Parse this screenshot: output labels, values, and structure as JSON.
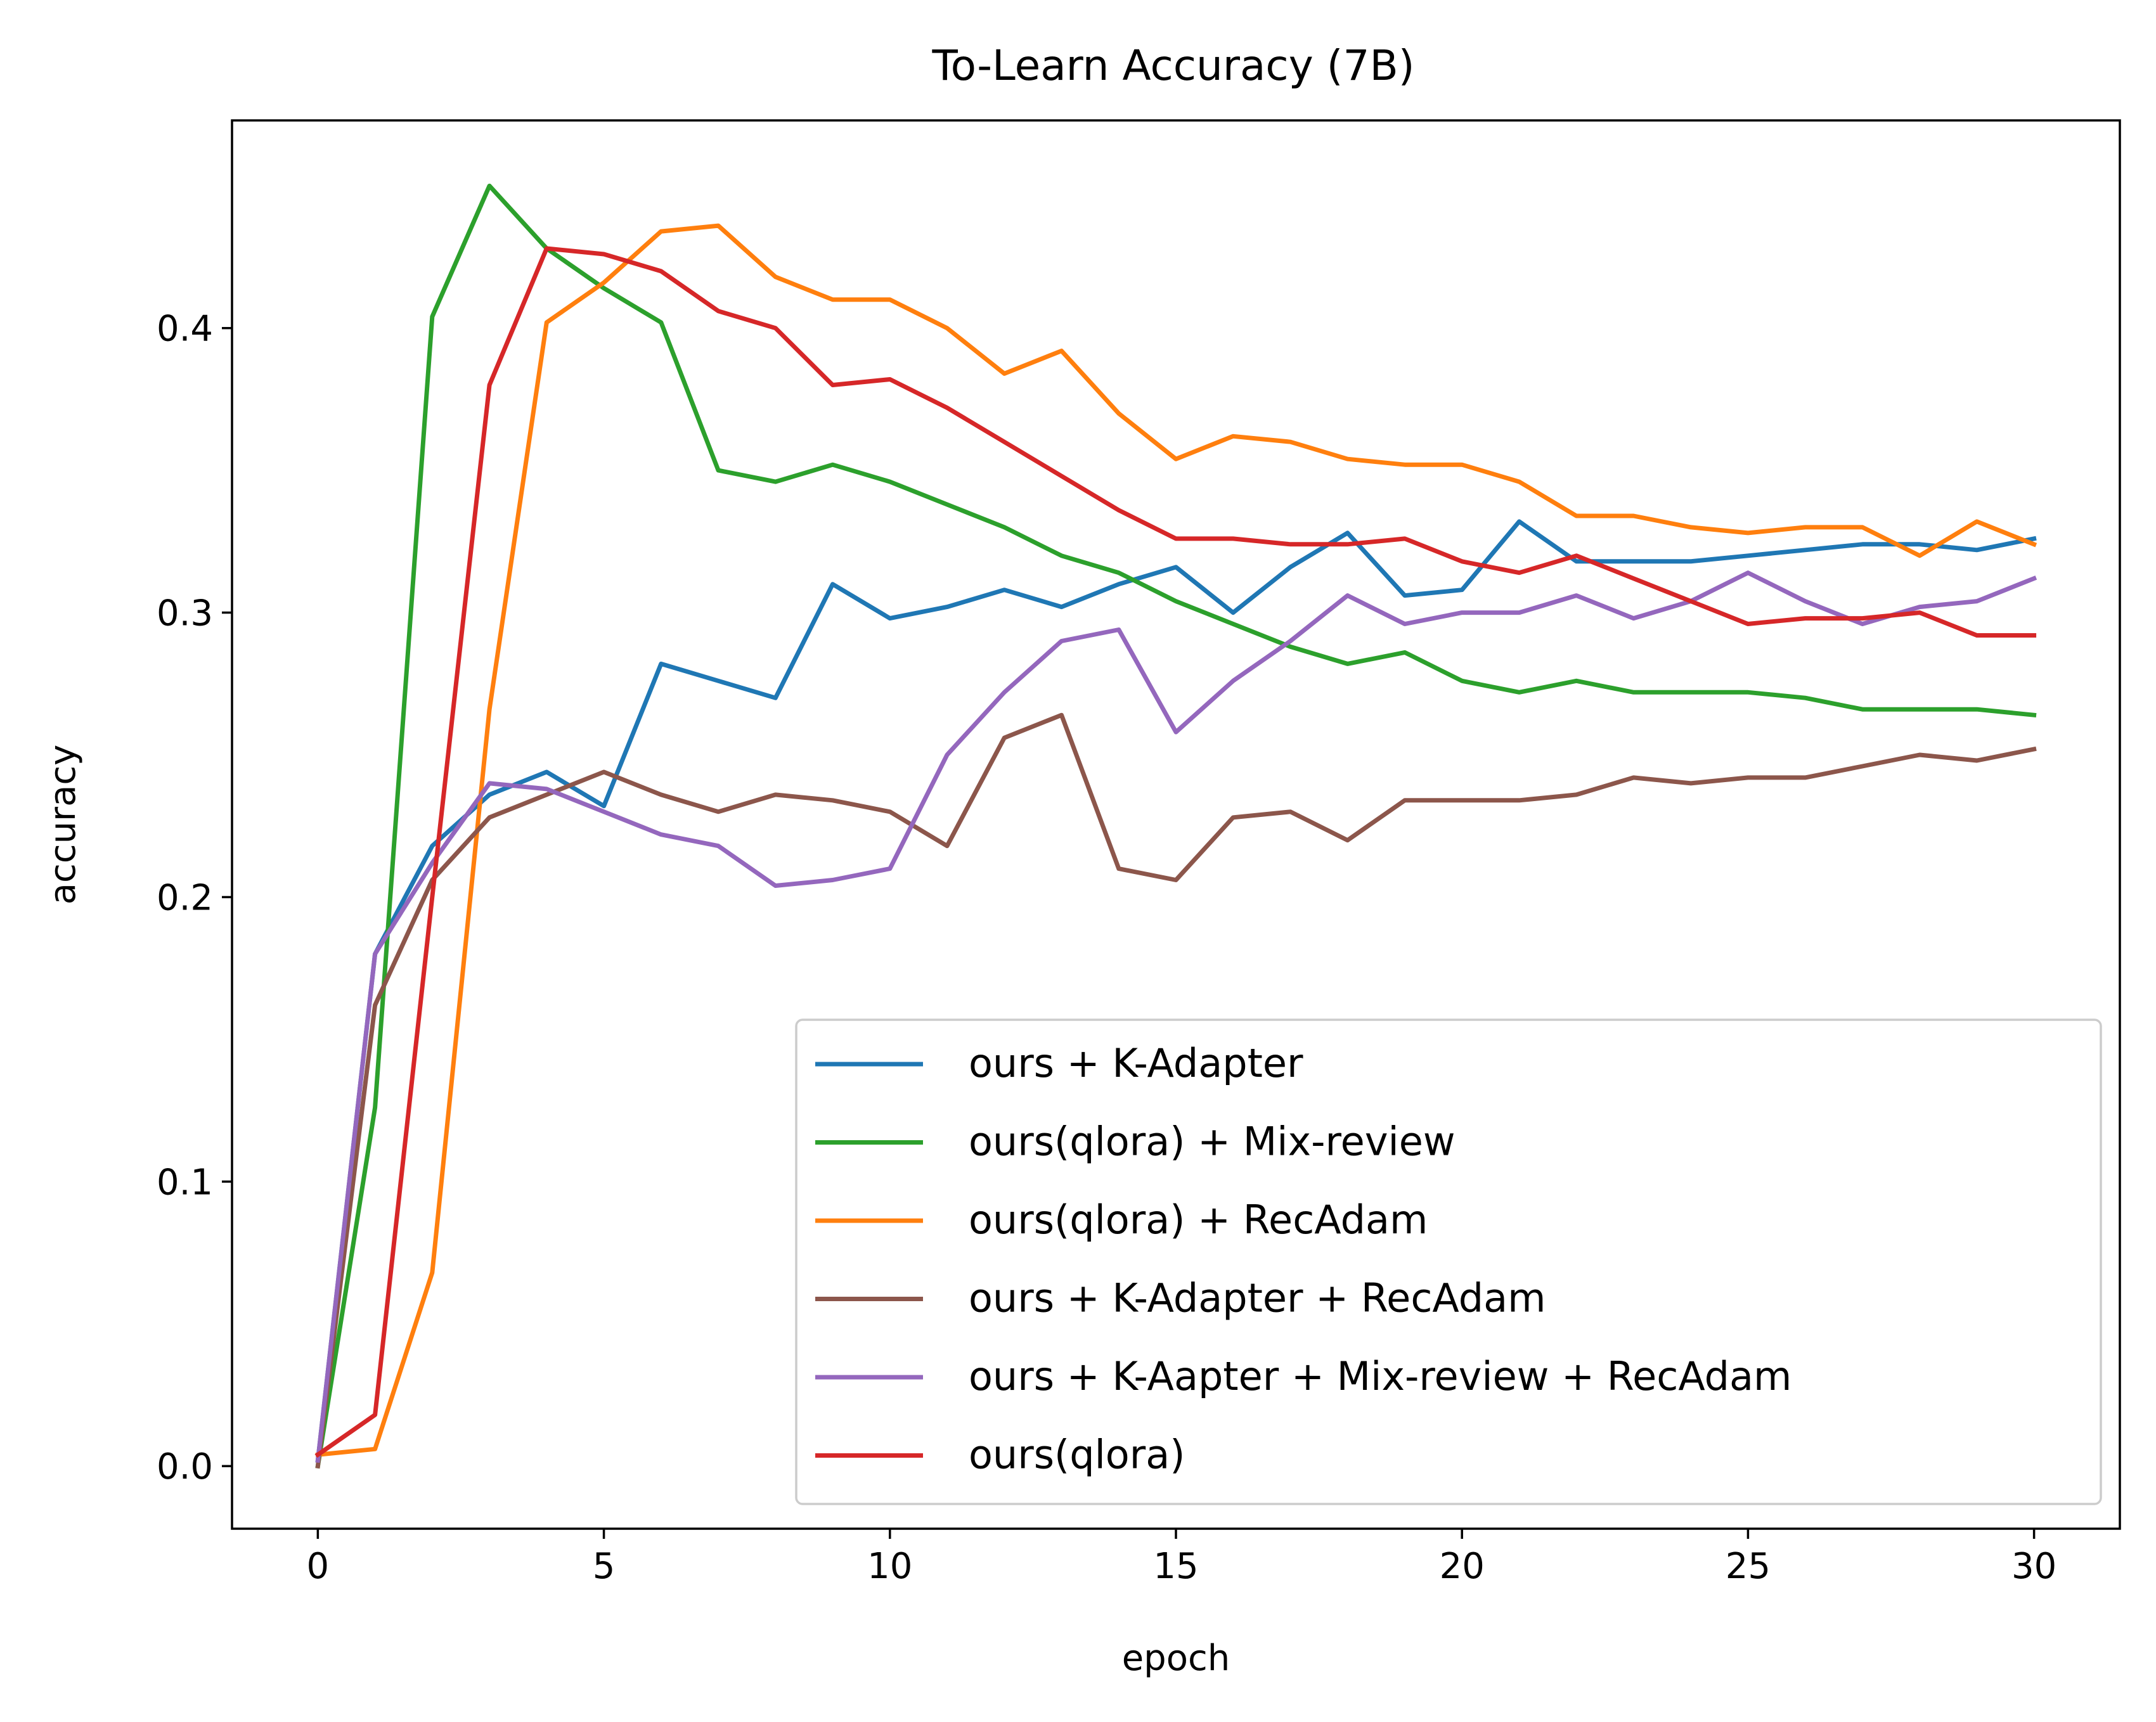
{
  "chart_data": {
    "type": "line",
    "title": "To-Learn Accuracy (7B)",
    "xlabel": "epoch",
    "ylabel": "accuracy",
    "xlim": [
      -1.5,
      31.5
    ],
    "ylim": [
      -0.022,
      0.473
    ],
    "xticks": [
      0,
      5,
      10,
      15,
      20,
      25,
      30
    ],
    "xtick_labels": [
      "0",
      "5",
      "10",
      "15",
      "20",
      "25",
      "30"
    ],
    "yticks": [
      0.0,
      0.1,
      0.2,
      0.3,
      0.4
    ],
    "ytick_labels": [
      "0.0",
      "0.1",
      "0.2",
      "0.3",
      "0.4"
    ],
    "grid": false,
    "legend_position": "lower-right",
    "x": [
      0,
      1,
      2,
      3,
      4,
      5,
      6,
      7,
      8,
      9,
      10,
      11,
      12,
      13,
      14,
      15,
      16,
      17,
      18,
      19,
      20,
      21,
      22,
      23,
      24,
      25,
      26,
      27,
      28,
      29,
      30
    ],
    "series": [
      {
        "name": "ours + K-Adapter",
        "color": "#1f77b4",
        "values": [
          0.002,
          0.18,
          0.218,
          0.236,
          0.244,
          0.232,
          0.282,
          0.276,
          0.27,
          0.31,
          0.298,
          0.302,
          0.308,
          0.302,
          0.31,
          0.316,
          0.3,
          0.316,
          0.328,
          0.306,
          0.308,
          0.332,
          0.318,
          0.318,
          0.318,
          0.32,
          0.322,
          0.324,
          0.324,
          0.322,
          0.326
        ]
      },
      {
        "name": "ours(qlora) + Mix-review",
        "color": "#2ca02c",
        "values": [
          0.0,
          0.126,
          0.404,
          0.45,
          0.428,
          0.414,
          0.402,
          0.35,
          0.346,
          0.352,
          0.346,
          0.338,
          0.33,
          0.32,
          0.314,
          0.304,
          0.296,
          0.288,
          0.282,
          0.286,
          0.276,
          0.272,
          0.276,
          0.272,
          0.272,
          0.272,
          0.27,
          0.266,
          0.266,
          0.266,
          0.264
        ]
      },
      {
        "name": "ours(qlora) + RecAdam",
        "color": "#ff7f0e",
        "values": [
          0.004,
          0.006,
          0.068,
          0.266,
          0.402,
          0.416,
          0.434,
          0.436,
          0.418,
          0.41,
          0.41,
          0.4,
          0.384,
          0.392,
          0.37,
          0.354,
          0.362,
          0.36,
          0.354,
          0.352,
          0.352,
          0.346,
          0.334,
          0.334,
          0.33,
          0.328,
          0.33,
          0.33,
          0.32,
          0.332,
          0.324
        ]
      },
      {
        "name": "ours + K-Adapter + RecAdam",
        "color": "#8c564b",
        "values": [
          0.0,
          0.162,
          0.206,
          0.228,
          0.236,
          0.244,
          0.236,
          0.23,
          0.236,
          0.234,
          0.23,
          0.218,
          0.256,
          0.264,
          0.21,
          0.206,
          0.228,
          0.23,
          0.22,
          0.234,
          0.234,
          0.234,
          0.236,
          0.242,
          0.24,
          0.242,
          0.242,
          0.246,
          0.25,
          0.248,
          0.252
        ]
      },
      {
        "name": "ours + K-Aapter + Mix-review + RecAdam",
        "color": "#9467bd",
        "values": [
          0.002,
          0.18,
          0.212,
          0.24,
          0.238,
          0.23,
          0.222,
          0.218,
          0.204,
          0.206,
          0.21,
          0.25,
          0.272,
          0.29,
          0.294,
          0.258,
          0.276,
          0.29,
          0.306,
          0.296,
          0.3,
          0.3,
          0.306,
          0.298,
          0.304,
          0.314,
          0.304,
          0.296,
          0.302,
          0.304,
          0.312
        ]
      },
      {
        "name": "ours(qlora)",
        "color": "#d62728",
        "values": [
          0.004,
          0.018,
          0.2,
          0.38,
          0.428,
          0.426,
          0.42,
          0.406,
          0.4,
          0.38,
          0.382,
          0.372,
          0.36,
          0.348,
          0.336,
          0.326,
          0.326,
          0.324,
          0.324,
          0.326,
          0.318,
          0.314,
          0.32,
          0.312,
          0.304,
          0.296,
          0.298,
          0.298,
          0.3,
          0.292,
          0.292
        ]
      }
    ]
  }
}
